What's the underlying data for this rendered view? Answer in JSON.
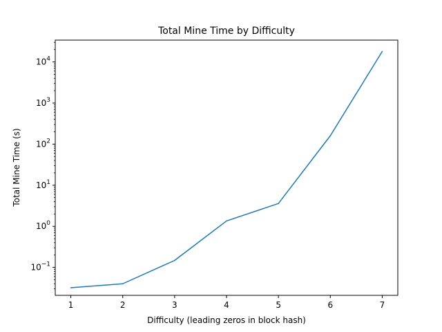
{
  "chart_data": {
    "type": "line",
    "title": "Total Mine Time by Difficulty",
    "xlabel": "Difficulty (leading zeros in block hash)",
    "ylabel": "Total Mine Time (s)",
    "yscale": "log",
    "x_ticks": [
      "1",
      "2",
      "3",
      "4",
      "5",
      "6",
      "7"
    ],
    "y_ticks": [
      {
        "value": 0.1,
        "mantissa": "10",
        "exponent": "−1"
      },
      {
        "value": 1,
        "mantissa": "10",
        "exponent": "0"
      },
      {
        "value": 10,
        "mantissa": "10",
        "exponent": "1"
      },
      {
        "value": 100,
        "mantissa": "10",
        "exponent": "2"
      },
      {
        "value": 1000,
        "mantissa": "10",
        "exponent": "3"
      },
      {
        "value": 10000,
        "mantissa": "10",
        "exponent": "4"
      }
    ],
    "xlim": [
      0.7,
      7.3
    ],
    "ylim": [
      0.0209,
      34000
    ],
    "grid": false,
    "series": [
      {
        "color": "#1f77b4",
        "x": [
          1,
          2,
          3,
          4,
          5,
          6,
          7
        ],
        "values": [
          0.032,
          0.04,
          0.148,
          1.35,
          3.6,
          160,
          18000
        ]
      }
    ]
  }
}
